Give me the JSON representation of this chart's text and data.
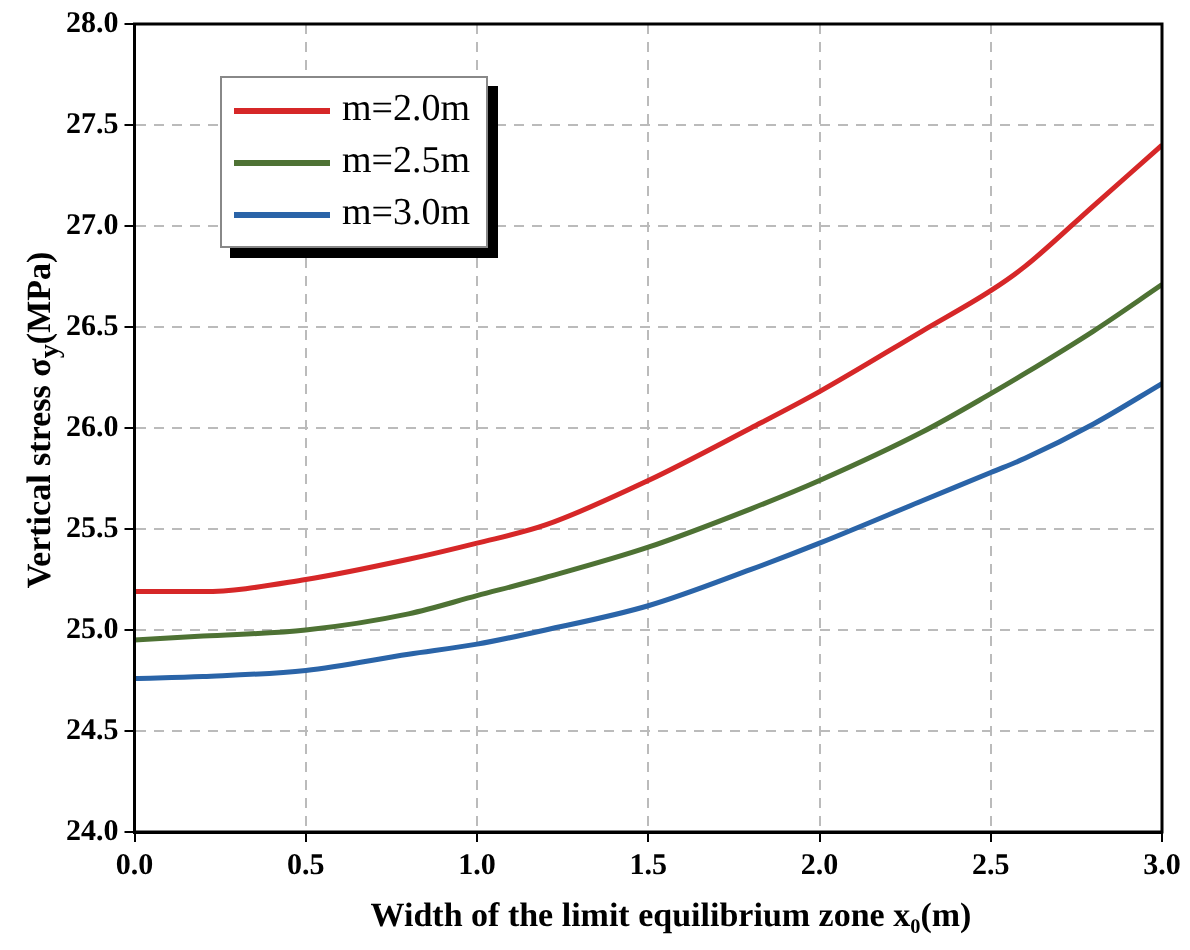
{
  "chart_data": {
    "type": "line",
    "xlabel": "Width of the limit equilibrium zone x₀(m)",
    "ylabel": "Vertical stress σ$_{y}$(MPa)",
    "x": [
      0,
      0.2,
      0.5,
      0.8,
      1.0,
      1.2,
      1.5,
      1.8,
      2.0,
      2.3,
      2.5,
      2.6,
      2.8,
      3.0
    ],
    "series": [
      {
        "name": "m=2.0m",
        "color": "#d62728",
        "values": [
          25.19,
          25.19,
          25.25,
          25.35,
          25.43,
          25.52,
          25.74,
          26.0,
          26.18,
          26.48,
          26.68,
          26.8,
          27.1,
          27.4
        ]
      },
      {
        "name": "m=2.5m",
        "color": "#4e7234",
        "values": [
          24.95,
          24.97,
          25.0,
          25.08,
          25.17,
          25.26,
          25.41,
          25.6,
          25.74,
          25.98,
          26.17,
          26.27,
          26.48,
          26.71
        ]
      },
      {
        "name": "m=3.0m",
        "color": "#2a64a8",
        "values": [
          24.76,
          24.77,
          24.8,
          24.88,
          24.93,
          25.0,
          25.12,
          25.3,
          25.43,
          25.64,
          25.78,
          25.85,
          26.02,
          26.22
        ]
      }
    ],
    "xlim": [
      0,
      3.0
    ],
    "xticks": [
      {
        "value": 0,
        "label": "0.0"
      },
      {
        "value": 0.5,
        "label": "0.5"
      },
      {
        "value": 1,
        "label": "1.0"
      },
      {
        "value": 1.5,
        "label": "1.5"
      },
      {
        "value": 2,
        "label": "2.0"
      },
      {
        "value": 2.5,
        "label": "2.5"
      },
      {
        "value": 3,
        "label": "3.0"
      }
    ],
    "ylim": [
      24.0,
      28.0
    ],
    "yticks": [
      {
        "value": 24,
        "label": "24.0"
      },
      {
        "value": 24.5,
        "label": "24.5"
      },
      {
        "value": 25,
        "label": "25.0"
      },
      {
        "value": 25.5,
        "label": "25.5"
      },
      {
        "value": 26,
        "label": "26.0"
      },
      {
        "value": 26.5,
        "label": "26.5"
      },
      {
        "value": 27,
        "label": "27.0"
      },
      {
        "value": 27.5,
        "label": "27.5"
      },
      {
        "value": 28,
        "label": "28.0"
      }
    ],
    "grid": true,
    "legend": "top left",
    "marker": "none",
    "line_style": "solid"
  }
}
